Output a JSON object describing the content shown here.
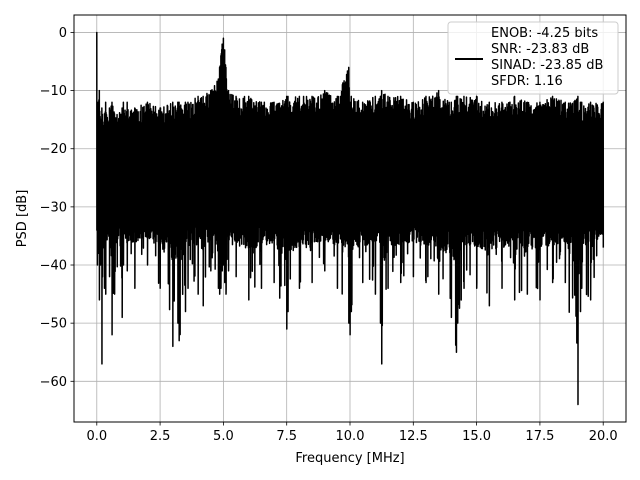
{
  "chart_data": {
    "type": "line",
    "title": "",
    "xlabel": "Frequency [MHz]",
    "ylabel": "PSD [dB]",
    "xlim": [
      -0.9,
      20.9
    ],
    "ylim": [
      -67,
      3
    ],
    "x_ticks": [
      0.0,
      2.5,
      5.0,
      7.5,
      10.0,
      12.5,
      15.0,
      17.5,
      20.0
    ],
    "x_tick_labels": [
      "0.0",
      "2.5",
      "5.0",
      "7.5",
      "10.0",
      "12.5",
      "15.0",
      "17.5",
      "20.0"
    ],
    "y_ticks": [
      0,
      -10,
      -20,
      -30,
      -40,
      -50,
      -60
    ],
    "y_tick_labels": [
      "0",
      "−10",
      "−20",
      "−30",
      "−40",
      "−50",
      "−60"
    ],
    "grid": true,
    "legend_position": "top-right",
    "series": [
      {
        "name": "ENOB: -4.25 bits\nSNR: -23.83 dB\nSINAD: -23.85 dB\nSFDR: 1.16",
        "color": "#000000",
        "noise_floor_band_db": [
          -33,
          -13
        ],
        "x": [
          0.0,
          0.02,
          0.05,
          0.1,
          0.15,
          0.2,
          0.3,
          0.35,
          0.5,
          0.6,
          0.7,
          1.0,
          1.05,
          1.2,
          1.5,
          2.0,
          2.5,
          3.0,
          3.2,
          3.25,
          3.5,
          3.6,
          4.0,
          4.2,
          4.5,
          4.8,
          4.85,
          4.9,
          4.95,
          5.0,
          5.05,
          5.1,
          5.2,
          5.5,
          6.0,
          6.5,
          7.0,
          7.5,
          7.55,
          8.0,
          8.5,
          9.0,
          9.5,
          9.95,
          10.0,
          10.05,
          10.5,
          11.0,
          11.2,
          11.25,
          11.5,
          12.0,
          12.5,
          13.0,
          13.5,
          14.0,
          14.2,
          14.25,
          14.5,
          15.0,
          15.5,
          16.0,
          16.5,
          17.0,
          17.5,
          18.0,
          18.5,
          19.0,
          19.1,
          19.15,
          19.5,
          20.0
        ],
        "peaks": [
          0.0,
          -13,
          -12,
          -10,
          -15,
          -13,
          -14,
          -12,
          -13,
          -12,
          -14,
          -13,
          -12,
          -12,
          -13,
          -12,
          -13,
          -12,
          -12,
          -12,
          -12,
          -12,
          -11,
          -11,
          -10,
          -8,
          -6,
          -4,
          -2,
          -1,
          -3,
          -6,
          -10,
          -11,
          -11,
          -12,
          -12,
          -11,
          -11,
          -11,
          -11,
          -10,
          -11,
          -6,
          -12,
          -11,
          -12,
          -11,
          -11,
          -10,
          -11,
          -11,
          -12,
          -11,
          -10,
          -12,
          -11,
          -11,
          -11,
          -11,
          -12,
          -12,
          -11,
          -12,
          -12,
          -11,
          -12,
          -11,
          -12,
          -12,
          -12,
          -12
        ],
        "troughs": [
          -34,
          -40,
          -38,
          -46,
          -40,
          -57,
          -44,
          -45,
          -42,
          -52,
          -45,
          -49,
          -40,
          -41,
          -44,
          -40,
          -44,
          -54,
          -50,
          -53,
          -48,
          -44,
          -45,
          -47,
          -41,
          -44,
          -45,
          -44,
          -41,
          -40,
          -43,
          -45,
          -41,
          -42,
          -46,
          -44,
          -43,
          -51,
          -48,
          -44,
          -43,
          -41,
          -44,
          -50,
          -52,
          -48,
          -43,
          -45,
          -50,
          -57,
          -44,
          -43,
          -42,
          -43,
          -45,
          -49,
          -55,
          -50,
          -44,
          -44,
          -47,
          -44,
          -46,
          -45,
          -46,
          -43,
          -43,
          -64,
          -48,
          -44,
          -46,
          -37
        ]
      }
    ]
  }
}
